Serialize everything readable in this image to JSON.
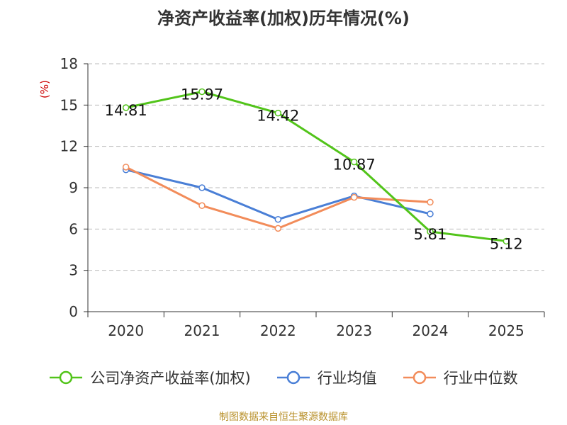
{
  "chart_data": {
    "type": "line",
    "title": "净资产收益率(加权)历年情况(%)",
    "ylabel": "(%)",
    "xlabel": "",
    "categories": [
      "2020",
      "2021",
      "2022",
      "2023",
      "2024",
      "2025"
    ],
    "ylim": [
      0,
      18
    ],
    "yticks": [
      0,
      3,
      6,
      9,
      12,
      15,
      18
    ],
    "grid": true,
    "legend_position": "bottom",
    "series": [
      {
        "name": "公司净资产收益率(加权)",
        "color": "#52c41a",
        "values": [
          14.81,
          15.97,
          14.42,
          10.87,
          5.81,
          5.12
        ],
        "data_labels": [
          "14.81",
          "15.97",
          "14.42",
          "10.87",
          "5.81",
          "5.12"
        ]
      },
      {
        "name": "行业均值",
        "color": "#4a7fd6",
        "values": [
          10.3,
          9.0,
          6.7,
          8.4,
          7.1,
          null
        ]
      },
      {
        "name": "行业中位数",
        "color": "#f28c5a",
        "values": [
          10.5,
          7.7,
          6.05,
          8.3,
          7.95,
          null
        ]
      }
    ]
  },
  "source": "制图数据来自恒生聚源数据库",
  "colors": {
    "axis": "#333333",
    "grid": "#bbbbbb",
    "ylabel": "#cc0000",
    "source": "#b8902a"
  }
}
